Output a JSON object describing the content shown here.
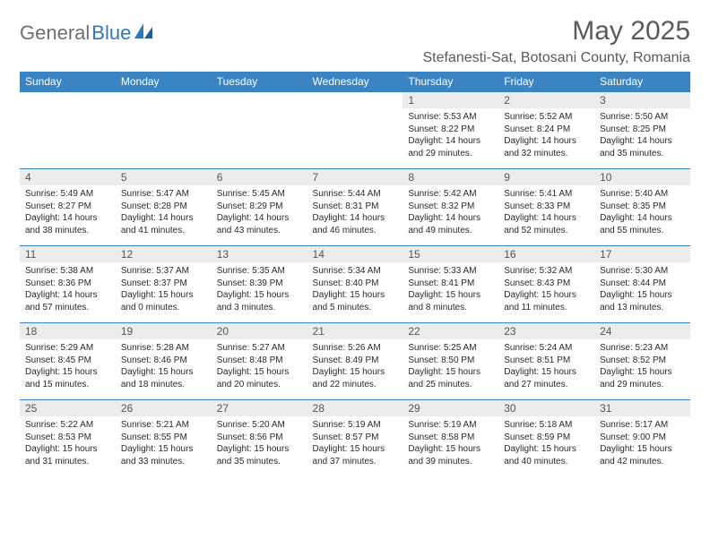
{
  "brand": {
    "part1": "General",
    "part2": "Blue",
    "color1": "#6f6f6f",
    "color2": "#2f79b9"
  },
  "title": "May 2025",
  "location": "Stefanesti-Sat, Botosani County, Romania",
  "header_bg": "#3b84c4",
  "daynum_bg": "#ececec",
  "row_border": "#3b84c4",
  "weekdays": [
    "Sunday",
    "Monday",
    "Tuesday",
    "Wednesday",
    "Thursday",
    "Friday",
    "Saturday"
  ],
  "weeks": [
    [
      {
        "n": "",
        "lines": []
      },
      {
        "n": "",
        "lines": []
      },
      {
        "n": "",
        "lines": []
      },
      {
        "n": "",
        "lines": []
      },
      {
        "n": "1",
        "lines": [
          "Sunrise: 5:53 AM",
          "Sunset: 8:22 PM",
          "Daylight: 14 hours and 29 minutes."
        ]
      },
      {
        "n": "2",
        "lines": [
          "Sunrise: 5:52 AM",
          "Sunset: 8:24 PM",
          "Daylight: 14 hours and 32 minutes."
        ]
      },
      {
        "n": "3",
        "lines": [
          "Sunrise: 5:50 AM",
          "Sunset: 8:25 PM",
          "Daylight: 14 hours and 35 minutes."
        ]
      }
    ],
    [
      {
        "n": "4",
        "lines": [
          "Sunrise: 5:49 AM",
          "Sunset: 8:27 PM",
          "Daylight: 14 hours and 38 minutes."
        ]
      },
      {
        "n": "5",
        "lines": [
          "Sunrise: 5:47 AM",
          "Sunset: 8:28 PM",
          "Daylight: 14 hours and 41 minutes."
        ]
      },
      {
        "n": "6",
        "lines": [
          "Sunrise: 5:45 AM",
          "Sunset: 8:29 PM",
          "Daylight: 14 hours and 43 minutes."
        ]
      },
      {
        "n": "7",
        "lines": [
          "Sunrise: 5:44 AM",
          "Sunset: 8:31 PM",
          "Daylight: 14 hours and 46 minutes."
        ]
      },
      {
        "n": "8",
        "lines": [
          "Sunrise: 5:42 AM",
          "Sunset: 8:32 PM",
          "Daylight: 14 hours and 49 minutes."
        ]
      },
      {
        "n": "9",
        "lines": [
          "Sunrise: 5:41 AM",
          "Sunset: 8:33 PM",
          "Daylight: 14 hours and 52 minutes."
        ]
      },
      {
        "n": "10",
        "lines": [
          "Sunrise: 5:40 AM",
          "Sunset: 8:35 PM",
          "Daylight: 14 hours and 55 minutes."
        ]
      }
    ],
    [
      {
        "n": "11",
        "lines": [
          "Sunrise: 5:38 AM",
          "Sunset: 8:36 PM",
          "Daylight: 14 hours and 57 minutes."
        ]
      },
      {
        "n": "12",
        "lines": [
          "Sunrise: 5:37 AM",
          "Sunset: 8:37 PM",
          "Daylight: 15 hours and 0 minutes."
        ]
      },
      {
        "n": "13",
        "lines": [
          "Sunrise: 5:35 AM",
          "Sunset: 8:39 PM",
          "Daylight: 15 hours and 3 minutes."
        ]
      },
      {
        "n": "14",
        "lines": [
          "Sunrise: 5:34 AM",
          "Sunset: 8:40 PM",
          "Daylight: 15 hours and 5 minutes."
        ]
      },
      {
        "n": "15",
        "lines": [
          "Sunrise: 5:33 AM",
          "Sunset: 8:41 PM",
          "Daylight: 15 hours and 8 minutes."
        ]
      },
      {
        "n": "16",
        "lines": [
          "Sunrise: 5:32 AM",
          "Sunset: 8:43 PM",
          "Daylight: 15 hours and 11 minutes."
        ]
      },
      {
        "n": "17",
        "lines": [
          "Sunrise: 5:30 AM",
          "Sunset: 8:44 PM",
          "Daylight: 15 hours and 13 minutes."
        ]
      }
    ],
    [
      {
        "n": "18",
        "lines": [
          "Sunrise: 5:29 AM",
          "Sunset: 8:45 PM",
          "Daylight: 15 hours and 15 minutes."
        ]
      },
      {
        "n": "19",
        "lines": [
          "Sunrise: 5:28 AM",
          "Sunset: 8:46 PM",
          "Daylight: 15 hours and 18 minutes."
        ]
      },
      {
        "n": "20",
        "lines": [
          "Sunrise: 5:27 AM",
          "Sunset: 8:48 PM",
          "Daylight: 15 hours and 20 minutes."
        ]
      },
      {
        "n": "21",
        "lines": [
          "Sunrise: 5:26 AM",
          "Sunset: 8:49 PM",
          "Daylight: 15 hours and 22 minutes."
        ]
      },
      {
        "n": "22",
        "lines": [
          "Sunrise: 5:25 AM",
          "Sunset: 8:50 PM",
          "Daylight: 15 hours and 25 minutes."
        ]
      },
      {
        "n": "23",
        "lines": [
          "Sunrise: 5:24 AM",
          "Sunset: 8:51 PM",
          "Daylight: 15 hours and 27 minutes."
        ]
      },
      {
        "n": "24",
        "lines": [
          "Sunrise: 5:23 AM",
          "Sunset: 8:52 PM",
          "Daylight: 15 hours and 29 minutes."
        ]
      }
    ],
    [
      {
        "n": "25",
        "lines": [
          "Sunrise: 5:22 AM",
          "Sunset: 8:53 PM",
          "Daylight: 15 hours and 31 minutes."
        ]
      },
      {
        "n": "26",
        "lines": [
          "Sunrise: 5:21 AM",
          "Sunset: 8:55 PM",
          "Daylight: 15 hours and 33 minutes."
        ]
      },
      {
        "n": "27",
        "lines": [
          "Sunrise: 5:20 AM",
          "Sunset: 8:56 PM",
          "Daylight: 15 hours and 35 minutes."
        ]
      },
      {
        "n": "28",
        "lines": [
          "Sunrise: 5:19 AM",
          "Sunset: 8:57 PM",
          "Daylight: 15 hours and 37 minutes."
        ]
      },
      {
        "n": "29",
        "lines": [
          "Sunrise: 5:19 AM",
          "Sunset: 8:58 PM",
          "Daylight: 15 hours and 39 minutes."
        ]
      },
      {
        "n": "30",
        "lines": [
          "Sunrise: 5:18 AM",
          "Sunset: 8:59 PM",
          "Daylight: 15 hours and 40 minutes."
        ]
      },
      {
        "n": "31",
        "lines": [
          "Sunrise: 5:17 AM",
          "Sunset: 9:00 PM",
          "Daylight: 15 hours and 42 minutes."
        ]
      }
    ]
  ]
}
